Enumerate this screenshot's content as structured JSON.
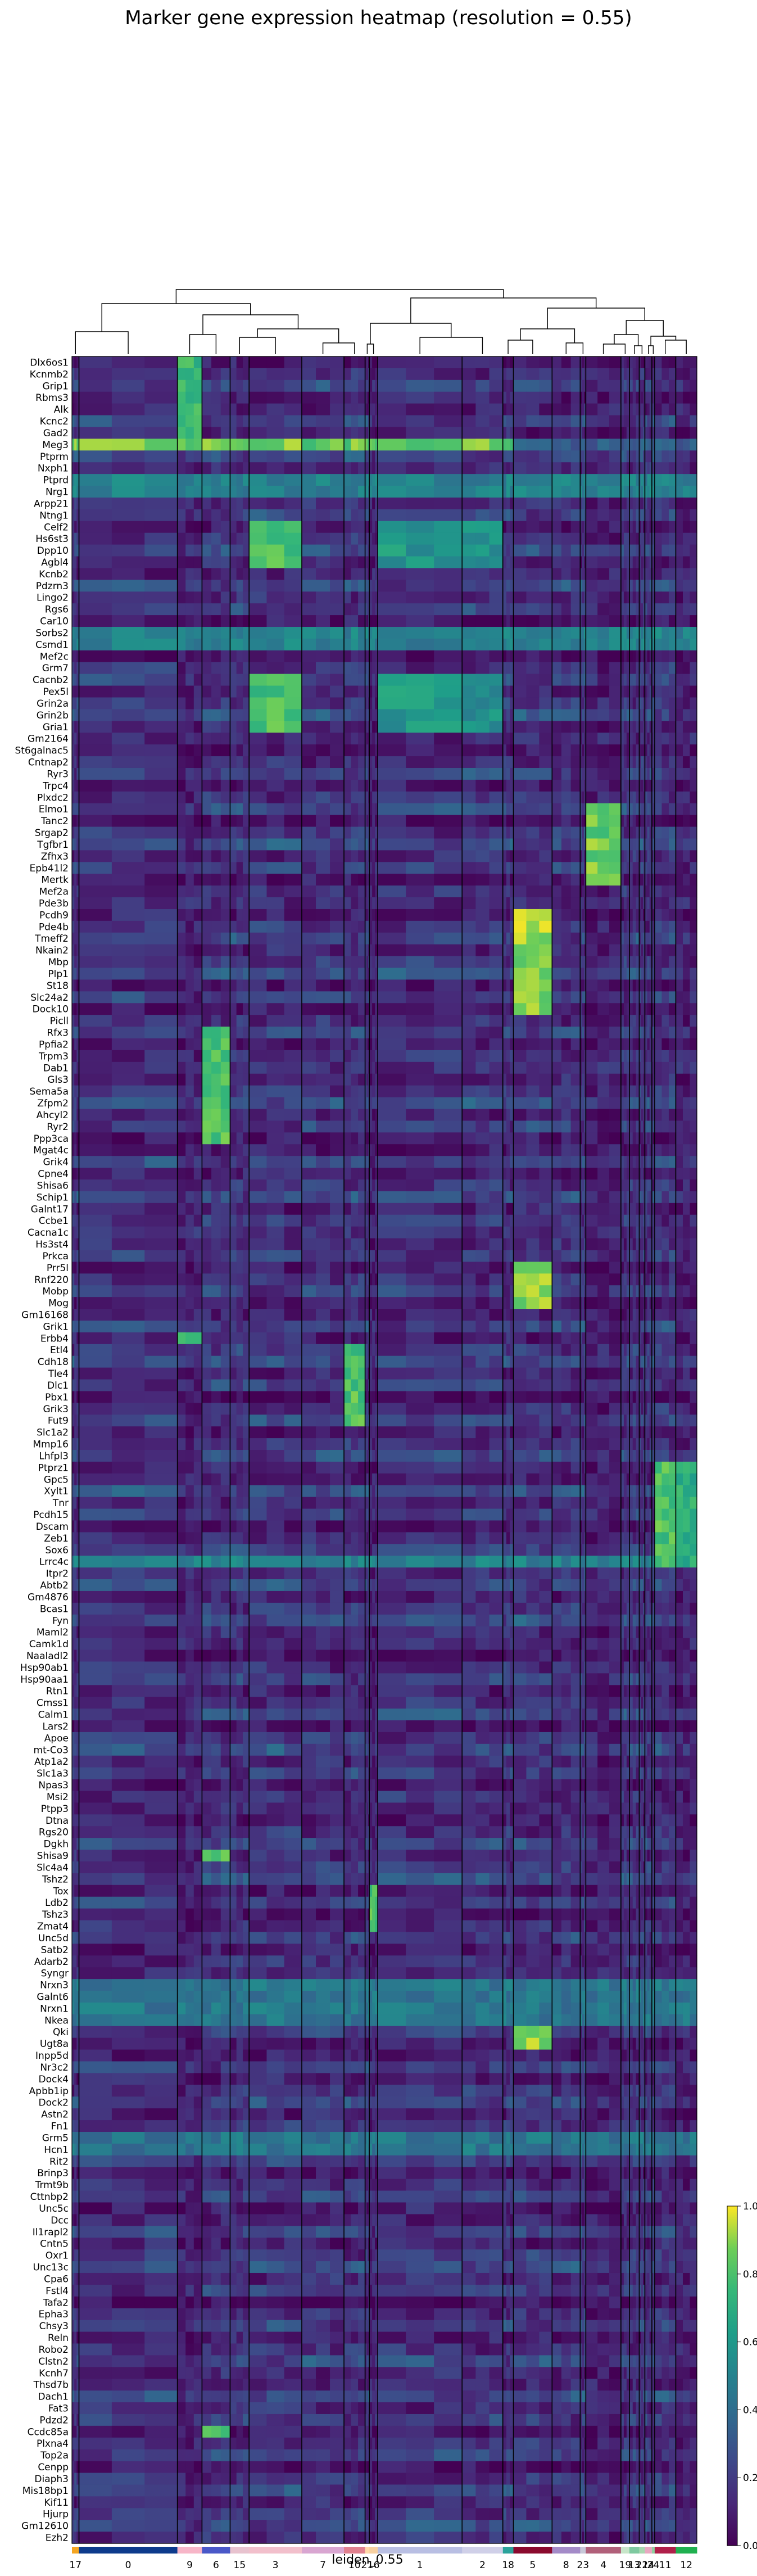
{
  "chart_data": {
    "type": "heatmap",
    "title": "Marker gene expression heatmap (resolution = 0.55)",
    "xlabel": "leiden_0.55",
    "colorbar": {
      "ticks": [
        "0.0",
        "0.2",
        "0.4",
        "0.6",
        "0.8",
        "1.0"
      ],
      "range": [
        0,
        1
      ],
      "colormap": "viridis"
    },
    "groups": [
      {
        "label": "17",
        "weight": 1.0,
        "color": "#f5a623"
      },
      {
        "label": "0",
        "weight": 14.0,
        "color": "#0d3b8c"
      },
      {
        "label": "9",
        "weight": 3.5,
        "color": "#f7b6c8"
      },
      {
        "label": "6",
        "weight": 4.0,
        "color": "#4a58c8"
      },
      {
        "label": "15",
        "weight": 2.7,
        "color": "#e8c3cf"
      },
      {
        "label": "3",
        "weight": 7.5,
        "color": "#f2c0cc"
      },
      {
        "label": "7",
        "weight": 6.0,
        "color": "#d9a6d1"
      },
      {
        "label": "10",
        "weight": 3.0,
        "color": "#e0808e"
      },
      {
        "label": "21",
        "weight": 0.6,
        "color": "#ffd8a8"
      },
      {
        "label": "16",
        "weight": 1.2,
        "color": "#f7d0a0"
      },
      {
        "label": "1",
        "weight": 12.0,
        "color": "#b9bfe3"
      },
      {
        "label": "2",
        "weight": 5.8,
        "color": "#d0d0e8"
      },
      {
        "label": "18",
        "weight": 1.5,
        "color": "#2ba39b"
      },
      {
        "label": "5",
        "weight": 5.5,
        "color": "#8b0a2e"
      },
      {
        "label": "8",
        "weight": 4.0,
        "color": "#a48bc8"
      },
      {
        "label": "23",
        "weight": 0.8,
        "color": "#c8c8d8"
      },
      {
        "label": "4",
        "weight": 5.0,
        "color": "#b1607a"
      },
      {
        "label": "19",
        "weight": 1.2,
        "color": "#c8e6c9"
      },
      {
        "label": "13",
        "weight": 1.4,
        "color": "#7fc9a0"
      },
      {
        "label": "22",
        "weight": 0.8,
        "color": "#a8d8b0"
      },
      {
        "label": "14",
        "weight": 1.0,
        "color": "#e8a8c0"
      },
      {
        "label": "24",
        "weight": 0.4,
        "color": "#90d0a0"
      },
      {
        "label": "11",
        "weight": 3.0,
        "color": "#b0204a"
      },
      {
        "label": "12",
        "weight": 3.0,
        "color": "#20b050"
      }
    ],
    "genes": [
      "Dlx6os1",
      "Kcnmb2",
      "Grip1",
      "Rbms3",
      "Alk",
      "Kcnc2",
      "Gad2",
      "Meg3",
      "Ptprm",
      "Nxph1",
      "Ptprd",
      "Nrg1",
      "Arpp21",
      "Ntng1",
      "Celf2",
      "Hs6st3",
      "Dpp10",
      "Agbl4",
      "Kcnb2",
      "Pdzrn3",
      "Lingo2",
      "Rgs6",
      "Car10",
      "Sorbs2",
      "Csmd1",
      "Mef2c",
      "Grm7",
      "Cacnb2",
      "Pex5l",
      "Grin2a",
      "Grin2b",
      "Gria1",
      "Gm2164",
      "St6galnac5",
      "Cntnap2",
      "Ryr3",
      "Trpc4",
      "Plxdc2",
      "Elmo1",
      "Tanc2",
      "Srgap2",
      "Tgfbr1",
      "Zfhx3",
      "Epb41l2",
      "Mertk",
      "Mef2a",
      "Pde3b",
      "Pcdh9",
      "Pde4b",
      "Tmeff2",
      "Nkain2",
      "Mbp",
      "Plp1",
      "St18",
      "Slc24a2",
      "Dock10",
      "Picll",
      "Rfx3",
      "Ppfia2",
      "Trpm3",
      "Dab1",
      "Gls3",
      "Sema5a",
      "Zfpm2",
      "Ahcyl2",
      "Ryr2",
      "Ppp3ca",
      "Mgat4c",
      "Grik4",
      "Cpne4",
      "Shisa6",
      "Schip1",
      "Galnt17",
      "Ccbe1",
      "Cacna1c",
      "Hs3st4",
      "Prkca",
      "Prr5l",
      "Rnf220",
      "Mobp",
      "Mog",
      "Gm16168",
      "Grik1",
      "Erbb4",
      "Etl4",
      "Cdh18",
      "Tle4",
      "Dlc1",
      "Pbx1",
      "Grik3",
      "Fut9",
      "Slc1a2",
      "Mmp16",
      "Lhfpl3",
      "Ptprz1",
      "Gpc5",
      "Xylt1",
      "Tnr",
      "Pcdh15",
      "Dscam",
      "Zeb1",
      "Sox6",
      "Lrrc4c",
      "Itpr2",
      "Abtb2",
      "Gm4876",
      "Bcas1",
      "Fyn",
      "Maml2",
      "Camk1d",
      "Naaladl2",
      "Hsp90ab1",
      "Hsp90aa1",
      "Rtn1",
      "Cmss1",
      "Calm1",
      "Lars2",
      "Apoe",
      "mt-Co3",
      "Atp1a2",
      "Slc1a3",
      "Npas3",
      "Msi2",
      "Ptpp3",
      "Dtna",
      "Rgs20",
      "Dgkh",
      "Shisa9",
      "Slc4a4",
      "Tshz2",
      "Tox",
      "Ldb2",
      "Tshz3",
      "Zmat4",
      "Unc5d",
      "Satb2",
      "Adarb2",
      "Syngr",
      "Nrxn3",
      "Galnt6",
      "Nrxn1",
      "Nkea",
      "Qki",
      "Ugt8a",
      "Inpp5d",
      "Nr3c2",
      "Dock4",
      "Apbb1ip",
      "Dock2",
      "Astn2",
      "Fn1",
      "Grm5",
      "Hcn1",
      "Rit2",
      "Brinp3",
      "Trmt9b",
      "Cttnbp2",
      "Unc5c",
      "Dcc",
      "Il1rapl2",
      "Cntn5",
      "Oxr1",
      "Unc13c",
      "Cpa6",
      "Fstl4",
      "Tafa2",
      "Epha3",
      "Chsy3",
      "Reln",
      "Robo2",
      "Clstn2",
      "Kcnh7",
      "Thsd7b",
      "Dach1",
      "Fat3",
      "Pdzd2",
      "Ccdc85a",
      "Plxna4",
      "Top2a",
      "Cenpp",
      "Diaph3",
      "Mis18bp1",
      "Kif11",
      "Hjurp",
      "Gm12610",
      "Ezh2"
    ]
  }
}
